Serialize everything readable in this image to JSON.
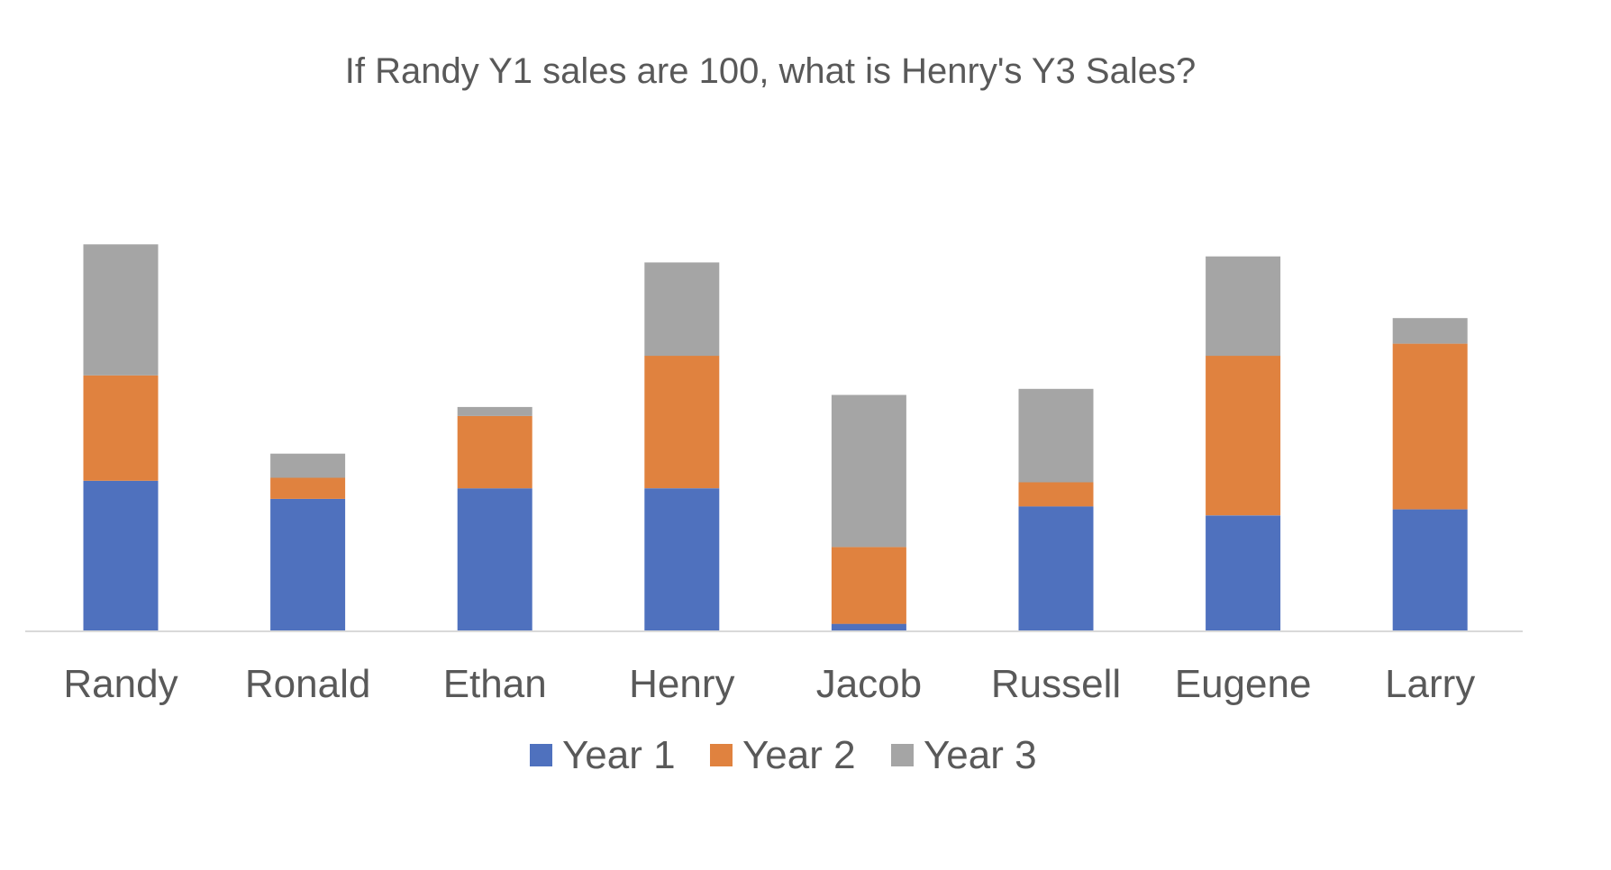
{
  "chart_data": {
    "type": "bar",
    "stacked": true,
    "title": "If Randy Y1 sales are 100, what is Henry's Y3 Sales?",
    "categories": [
      "Randy",
      "Ronald",
      "Ethan",
      "Henry",
      "Jacob",
      "Russell",
      "Eugene",
      "Larry"
    ],
    "series": [
      {
        "name": "Year 1",
        "color": "#4F71BE",
        "values": [
          100,
          88,
          95,
          95,
          5,
          83,
          77,
          81
        ]
      },
      {
        "name": "Year 2",
        "color": "#E0823F",
        "values": [
          70,
          14,
          48,
          88,
          51,
          16,
          106,
          110
        ]
      },
      {
        "name": "Year 3",
        "color": "#A5A5A5",
        "values": [
          87,
          16,
          6,
          62,
          101,
          62,
          66,
          17
        ]
      }
    ],
    "xlabel": "",
    "ylabel": "",
    "ylim": [
      0,
      270
    ],
    "y_axis_visible": false,
    "grid": false,
    "legend_position": "bottom"
  }
}
